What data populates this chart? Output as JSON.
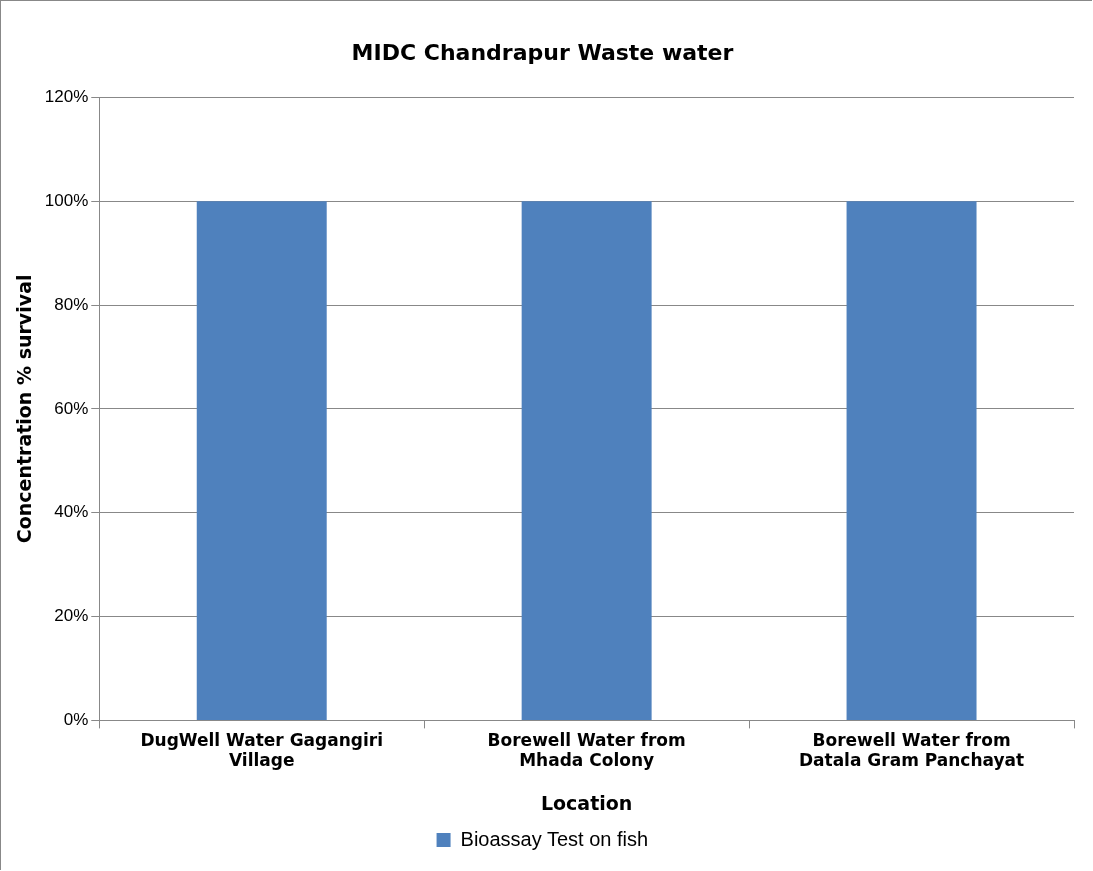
{
  "chart_data": {
    "type": "bar",
    "title": "MIDC Chandrapur Waste water",
    "xlabel": "Location",
    "ylabel": "Concentration % survival",
    "categories": [
      "DugWell Water Gagangiri Village",
      "Borewell Water from Mhada Colony",
      "Borewell Water from Datala Gram Panchayat"
    ],
    "series": [
      {
        "name": "Bioassay Test on fish",
        "color": "#4f81bd",
        "values": [
          100,
          100,
          100
        ]
      }
    ],
    "ylim": [
      0,
      120
    ],
    "yticks": [
      {
        "value": 0,
        "label": "0%"
      },
      {
        "value": 20,
        "label": "20%"
      },
      {
        "value": 40,
        "label": "40%"
      },
      {
        "value": 60,
        "label": "60%"
      },
      {
        "value": 80,
        "label": "80%"
      },
      {
        "value": 100,
        "label": "100%"
      },
      {
        "value": 120,
        "label": "120%"
      }
    ],
    "grid": "y",
    "legend": "bottom"
  }
}
